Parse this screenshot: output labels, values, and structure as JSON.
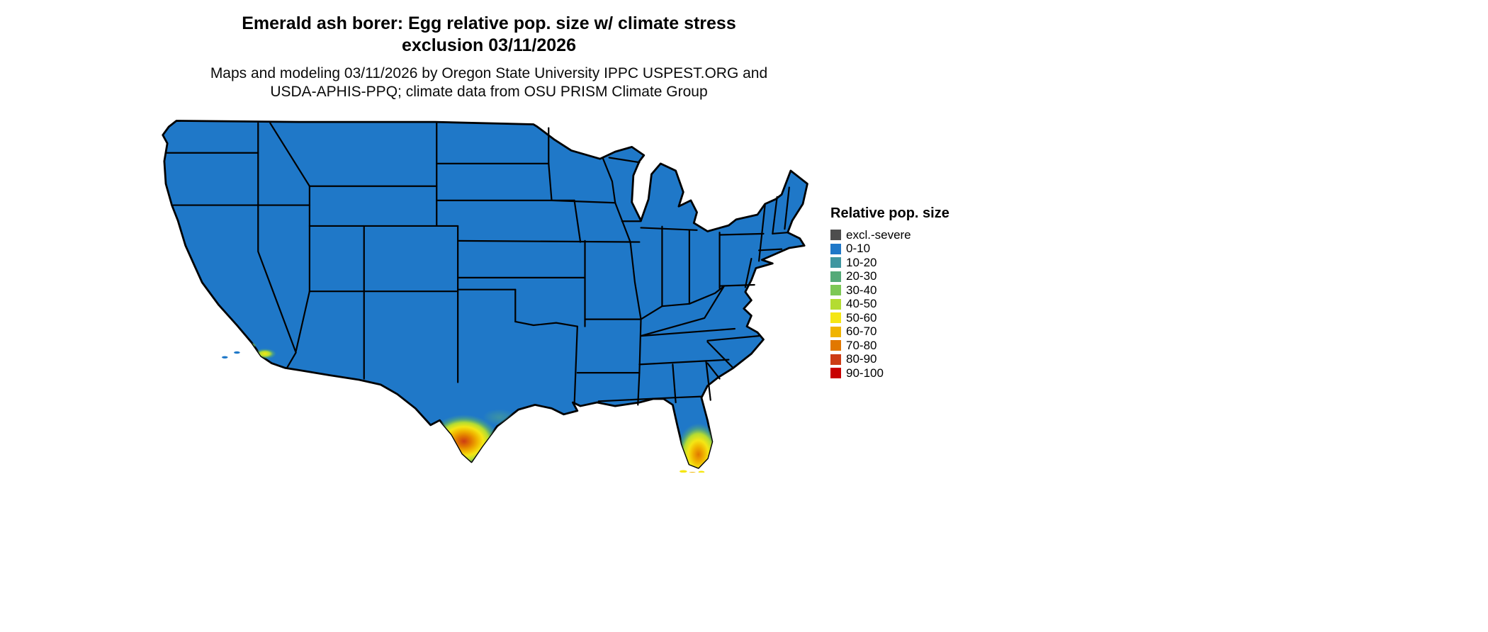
{
  "title": {
    "line1": "Emerald ash borer: Egg relative pop. size w/ climate stress",
    "line2": "exclusion 03/11/2026"
  },
  "subtitle": {
    "line1": "Maps and modeling 03/11/2026 by Oregon State University IPPC USPEST.ORG and",
    "line2": "USDA-APHIS-PPQ; climate data from OSU PRISM Climate Group"
  },
  "legend": {
    "title": "Relative pop. size",
    "items": [
      {
        "label": "excl.-severe",
        "color": "#4d4d4d"
      },
      {
        "label": "0-10",
        "color": "#1f78c8"
      },
      {
        "label": "10-20",
        "color": "#3f96a0"
      },
      {
        "label": "20-30",
        "color": "#55aa78"
      },
      {
        "label": "30-40",
        "color": "#7dc855"
      },
      {
        "label": "40-50",
        "color": "#b4dc32"
      },
      {
        "label": "50-60",
        "color": "#f5e614"
      },
      {
        "label": "60-70",
        "color": "#f0b400"
      },
      {
        "label": "70-80",
        "color": "#e17800"
      },
      {
        "label": "80-90",
        "color": "#cd3c14"
      },
      {
        "label": "90-100",
        "color": "#c80000"
      }
    ]
  },
  "map": {
    "region": "Continental United States",
    "base_color": "#1f78c8",
    "border_color": "#000000",
    "hotspots": [
      {
        "name": "southern-texas",
        "levels": "20-90"
      },
      {
        "name": "texas-gulf-coast",
        "levels": "10-30"
      },
      {
        "name": "southern-florida",
        "levels": "20-80"
      },
      {
        "name": "florida-keys",
        "levels": "50-70"
      },
      {
        "name": "southern-california-coast",
        "levels": "30-60"
      }
    ]
  }
}
